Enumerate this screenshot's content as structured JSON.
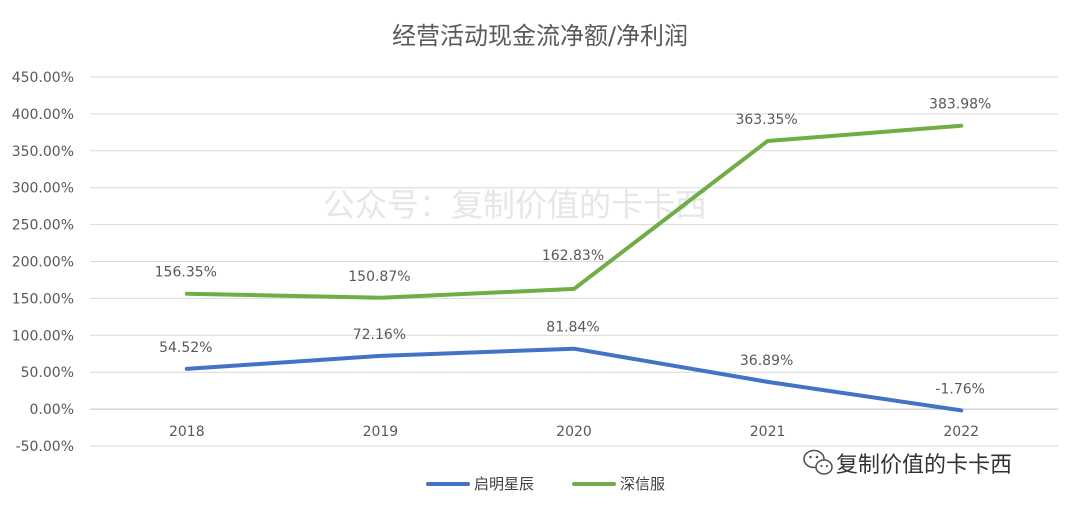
{
  "chart_data": {
    "type": "line",
    "title": "经营活动现金流净额/净利润",
    "categories": [
      "2018",
      "2019",
      "2020",
      "2021",
      "2022"
    ],
    "ylim": [
      -50,
      450
    ],
    "yticks": [
      -50,
      0,
      50,
      100,
      150,
      200,
      250,
      300,
      350,
      400,
      450
    ],
    "ytick_labels": [
      "-50.00%",
      "0.00%",
      "50.00%",
      "100.00%",
      "150.00%",
      "200.00%",
      "250.00%",
      "300.00%",
      "350.00%",
      "400.00%",
      "450.00%"
    ],
    "grid": true,
    "legend_position": "bottom",
    "series": [
      {
        "name": "启明星辰",
        "color": "#4472C4",
        "values": [
          54.52,
          72.16,
          81.84,
          36.89,
          -1.76
        ],
        "labels": [
          "54.52%",
          "72.16%",
          "81.84%",
          "36.89%",
          "-1.76%"
        ]
      },
      {
        "name": "深信服",
        "color": "#70AD47",
        "values": [
          156.35,
          150.87,
          162.83,
          363.35,
          383.98
        ],
        "labels": [
          "156.35%",
          "150.87%",
          "162.83%",
          "363.35%",
          "383.98%"
        ]
      }
    ]
  },
  "watermark": {
    "text": "公众号：复制价值的卡卡西"
  },
  "brand": {
    "icon": "wechat-icon",
    "text": "复制价值的卡卡西"
  }
}
